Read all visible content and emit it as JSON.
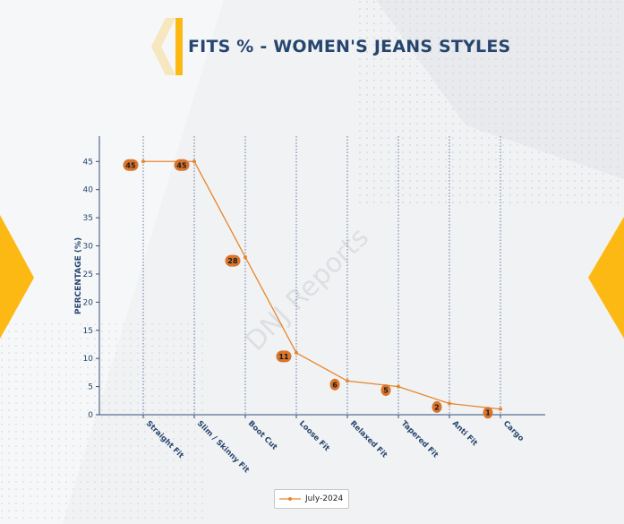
{
  "chart_data": {
    "type": "line",
    "title": "FITS % - WOMEN'S JEANS STYLES",
    "xlabel": "",
    "ylabel": "PERCENTAGE (%)",
    "categories": [
      "Straight Fit",
      "Slim / Skinny Fit",
      "Boot Cut",
      "Loose Fit",
      "Relaxed Fit",
      "Tapered Fit",
      "Anti Fit",
      "Cargo"
    ],
    "series": [
      {
        "name": "July-2024",
        "values": [
          45,
          45,
          28,
          11,
          6,
          5,
          2,
          1
        ]
      }
    ],
    "data_labels": [
      "45",
      "45",
      "28",
      "11",
      "6",
      "5",
      "2",
      "1"
    ],
    "yticks": [
      "0",
      "5",
      "10",
      "15",
      "20",
      "25",
      "30",
      "35",
      "40",
      "45"
    ],
    "ylim": [
      0,
      49.5
    ],
    "grid": "vertical dotted lines at categories",
    "legend_position": "bottom-center",
    "colors": {
      "line": "#e8862a",
      "label_bubble": "#d9742c",
      "axis": "#2f4f7a",
      "title": "#26466f",
      "accent": "#fdb913"
    }
  }
}
